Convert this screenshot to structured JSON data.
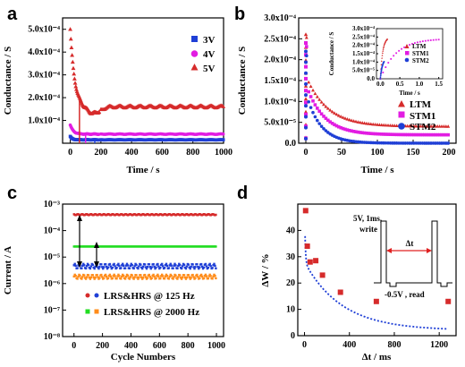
{
  "chart_data": [
    {
      "panel": "a",
      "type": "scatter",
      "xlabel": "Time / s",
      "ylabel": "Conductance / S",
      "xlim": [
        -50,
        1000
      ],
      "ylim": [
        0,
        0.00055
      ],
      "xticks": [
        "0",
        "200",
        "400",
        "600",
        "800",
        "1000"
      ],
      "yticks": [
        "1.0x10⁻⁴",
        "2.0x10⁻⁴",
        "3.0x10⁻⁴",
        "4.0x10⁻⁴",
        "5.0x10⁻⁴"
      ],
      "legend_position": "top-right",
      "series": [
        {
          "name": "3V",
          "color": "#1f3fd6",
          "marker": "square",
          "start": 3e-05,
          "plateau": 1.5e-05,
          "tau": 12,
          "dip": 0,
          "transition_x": 160
        },
        {
          "name": "4V",
          "color": "#e21ce2",
          "marker": "circle",
          "start": 8e-05,
          "plateau": 4e-05,
          "tau": 20,
          "dip": 0,
          "transition_x": 100
        },
        {
          "name": "5V",
          "color": "#d62b2b",
          "marker": "triangle",
          "start": 0.0005,
          "plateau": 0.00016,
          "tau": 28,
          "dip": 3e-05,
          "transition_x": 60
        }
      ]
    },
    {
      "panel": "b",
      "type": "scatter",
      "xlabel": "Time / s",
      "ylabel": "Conductance / S",
      "xlim": [
        -10,
        210
      ],
      "ylim": [
        0,
        0.0003
      ],
      "xticks": [
        "0",
        "50",
        "100",
        "150",
        "200"
      ],
      "yticks": [
        "0.0",
        "5.0x10⁻⁵",
        "1.0x10⁻⁴",
        "1.5x10⁻⁴",
        "2.0x10⁻⁴",
        "2.5x10⁻⁴",
        "3.0x10⁻⁴"
      ],
      "legend_position": "bottom-right",
      "series": [
        {
          "name": "LTM",
          "color": "#d62b2b",
          "marker": "triangle",
          "peak": 0.00026,
          "floor": 4e-05,
          "tau": 30
        },
        {
          "name": "STM1",
          "color": "#e21ce2",
          "marker": "square",
          "peak": 0.00024,
          "floor": 2e-05,
          "tau": 25
        },
        {
          "name": "STM2",
          "color": "#1f3fd6",
          "marker": "circle",
          "peak": 0.00022,
          "floor": 1e-07,
          "tau": 20
        }
      ],
      "inset": {
        "xlabel": "Time / s",
        "ylabel": "Conductance / S",
        "xlim": [
          -0.1,
          1.6
        ],
        "ylim": [
          0,
          0.0003
        ],
        "xticks": [
          "0.0",
          "0.5",
          "1.0",
          "1.5"
        ],
        "yticks": [
          "0.0",
          "5.0x10⁻⁵",
          "1.0x10⁻⁴",
          "1.5x10⁻⁴",
          "2.0x10⁻⁴",
          "2.5x10⁻⁴",
          "3.0x10⁻⁴"
        ],
        "legend": [
          "LTM",
          "STM1",
          "STM2"
        ]
      }
    },
    {
      "panel": "c",
      "type": "scatter",
      "xlabel": "Cycle Numbers",
      "ylabel": "Current / A",
      "yscale": "log",
      "xlim": [
        -80,
        1050
      ],
      "ylim": [
        1e-08,
        0.001
      ],
      "xticks": [
        "0",
        "200",
        "400",
        "600",
        "800",
        "1000"
      ],
      "yticks": [
        "10⁻⁸",
        "10⁻⁷",
        "10⁻⁶",
        "10⁻⁵",
        "10⁻⁴",
        "10⁻³"
      ],
      "legend_position": "bottom-right",
      "series": [
        {
          "name": "LRS&HRS @ 125 Hz",
          "color": "#d62b2b",
          "levels": [
            0.0004,
            4.5e-06
          ]
        },
        {
          "name": "LRS&HRS @ 2000 Hz",
          "color": "#22dd22",
          "color2": "#ff8c1a",
          "levels": [
            2.5e-05,
            1.8e-06
          ]
        }
      ]
    },
    {
      "panel": "d",
      "type": "scatter",
      "xlabel": "Δt / ms",
      "ylabel": "ΔW / %",
      "xlim": [
        -60,
        1350
      ],
      "ylim": [
        0,
        50
      ],
      "xticks": [
        "0",
        "400",
        "800",
        "1200"
      ],
      "yticks": [
        "0",
        "10",
        "20",
        "30",
        "40"
      ],
      "points": {
        "x": [
          10,
          25,
          50,
          100,
          160,
          320,
          640,
          1280
        ],
        "y": [
          47.5,
          34,
          28,
          28.5,
          23,
          16.5,
          13,
          13
        ],
        "color": "#d62b2b"
      },
      "fit": {
        "a": 26,
        "b": 47,
        "tau": 6,
        "c": 0.003,
        "color": "#1f3fd6"
      },
      "inset_labels": [
        "5V, 1ms,",
        "write",
        "Δt",
        "-0.5V , read"
      ]
    }
  ],
  "panel_labels": [
    "a",
    "b",
    "c",
    "d"
  ]
}
